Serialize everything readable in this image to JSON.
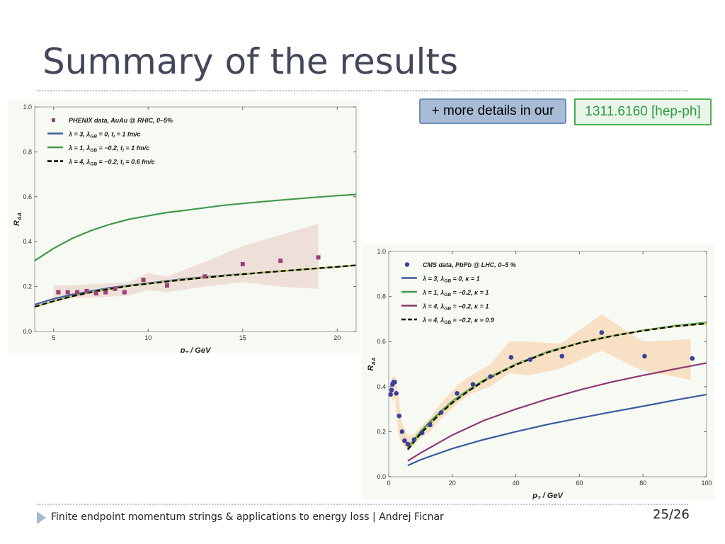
{
  "slide": {
    "title": "Summary of the results",
    "details_label": "+ more details in our",
    "arxiv_label": "1311.6160 [hep-ph]",
    "footer": "Finite endpoint momentum strings & applications to energy loss  |  Andrej Ficnar",
    "page": "25/26"
  },
  "chart_data": [
    {
      "type": "scatter",
      "xlabel": "p_T / GeV",
      "ylabel": "R_AA",
      "xlim": [
        4,
        21
      ],
      "ylim": [
        0,
        1.0
      ],
      "xticks": [
        5,
        10,
        15,
        20
      ],
      "yticks": [
        0.0,
        0.2,
        0.4,
        0.6,
        0.8,
        1.0
      ],
      "legend_position": "top-left",
      "points": {
        "name": "PHENIX data, AuAu @ RHIC, 0–5%",
        "color": "#9a3f78",
        "x": [
          5.25,
          5.75,
          6.25,
          6.75,
          7.25,
          7.75,
          8.25,
          8.75,
          9.75,
          11.0,
          13.0,
          15.0,
          17.0,
          19.0
        ],
        "y": [
          0.175,
          0.175,
          0.175,
          0.18,
          0.17,
          0.175,
          0.19,
          0.175,
          0.23,
          0.205,
          0.245,
          0.3,
          0.315,
          0.33
        ]
      },
      "band": {
        "color": "#ecdcd3",
        "x": [
          5,
          6,
          7,
          8,
          9,
          10,
          11,
          13,
          15,
          17,
          19
        ],
        "upper": [
          0.205,
          0.205,
          0.21,
          0.215,
          0.22,
          0.26,
          0.245,
          0.31,
          0.38,
          0.43,
          0.48
        ],
        "lower": [
          0.15,
          0.15,
          0.15,
          0.155,
          0.16,
          0.185,
          0.175,
          0.2,
          0.22,
          0.2,
          0.19
        ]
      },
      "series": [
        {
          "name": "λ = 3, λ_GB = 0, t_i = 1 fm/c",
          "color": "#3a5ba0",
          "style": "solid",
          "x": [
            4,
            5,
            6,
            7,
            8,
            9,
            10,
            12,
            14,
            16,
            18,
            20,
            21
          ],
          "y": [
            0.12,
            0.145,
            0.165,
            0.18,
            0.195,
            0.205,
            0.215,
            0.235,
            0.25,
            0.262,
            0.275,
            0.288,
            0.295
          ]
        },
        {
          "name": "λ = 1, λ_GB = −0.2, t_i = 1 fm/c",
          "color": "#3f9a4f",
          "style": "solid",
          "x": [
            4,
            5,
            6,
            7,
            8,
            9,
            10,
            11,
            12,
            14,
            16,
            18,
            20,
            21
          ],
          "y": [
            0.315,
            0.37,
            0.415,
            0.45,
            0.478,
            0.5,
            0.515,
            0.53,
            0.54,
            0.562,
            0.578,
            0.592,
            0.605,
            0.61
          ]
        },
        {
          "name": "λ = 4, λ_GB = −0.2, t_i = 0.6 fm/c",
          "color": "#000000",
          "style": "dashed",
          "x": [
            4,
            5,
            6,
            7,
            8,
            9,
            10,
            12,
            14,
            16,
            18,
            20,
            21
          ],
          "y": [
            0.11,
            0.135,
            0.157,
            0.175,
            0.19,
            0.203,
            0.213,
            0.232,
            0.248,
            0.262,
            0.275,
            0.288,
            0.295
          ]
        }
      ]
    },
    {
      "type": "scatter",
      "xlabel": "p_T / GeV",
      "ylabel": "R_AA",
      "xlim": [
        0,
        100
      ],
      "ylim": [
        0,
        1.0
      ],
      "xticks": [
        0,
        20,
        40,
        60,
        80,
        100
      ],
      "yticks": [
        0.0,
        0.2,
        0.4,
        0.6,
        0.8,
        1.0
      ],
      "legend_position": "top-left",
      "points": {
        "name": "CMS data, PbPb @ LHC, 0–5 %",
        "color": "#3b3f9c",
        "x": [
          0.6,
          0.9,
          1.2,
          1.5,
          1.9,
          2.4,
          3.3,
          4.2,
          5.0,
          6.0,
          8.0,
          10.5,
          13.0,
          16.5,
          21.5,
          26.5,
          32.0,
          38.5,
          44.5,
          54.5,
          67.0,
          80.5,
          95.5
        ],
        "y": [
          0.365,
          0.385,
          0.41,
          0.42,
          0.42,
          0.37,
          0.27,
          0.2,
          0.16,
          0.145,
          0.165,
          0.195,
          0.23,
          0.285,
          0.37,
          0.41,
          0.445,
          0.53,
          0.52,
          0.535,
          0.64,
          0.535,
          0.525
        ]
      },
      "band": {
        "color": "#f7dcba",
        "x": [
          1,
          2,
          3,
          4,
          6,
          8,
          10,
          13,
          16,
          22,
          26,
          32,
          38,
          44,
          54,
          67,
          80,
          95
        ],
        "upper": [
          0.44,
          0.45,
          0.36,
          0.25,
          0.18,
          0.19,
          0.22,
          0.26,
          0.32,
          0.41,
          0.45,
          0.5,
          0.6,
          0.6,
          0.59,
          0.72,
          0.6,
          0.61
        ],
        "lower": [
          0.33,
          0.35,
          0.19,
          0.15,
          0.12,
          0.14,
          0.17,
          0.2,
          0.25,
          0.33,
          0.37,
          0.4,
          0.46,
          0.45,
          0.48,
          0.56,
          0.47,
          0.43
        ]
      },
      "series": [
        {
          "name": "λ = 3, λ_GB = 0, κ = 1",
          "color": "#3a5ba0",
          "style": "solid",
          "x": [
            6,
            10,
            15,
            20,
            30,
            40,
            50,
            60,
            70,
            80,
            90,
            100
          ],
          "y": [
            0.05,
            0.075,
            0.1,
            0.125,
            0.165,
            0.2,
            0.232,
            0.26,
            0.287,
            0.313,
            0.34,
            0.365
          ]
        },
        {
          "name": "λ = 1, λ_GB = −0.2, κ = 1",
          "color": "#3f9a4f",
          "style": "solid",
          "x": [
            6,
            8,
            10,
            13,
            16,
            20,
            25,
            30,
            35,
            40,
            50,
            60,
            70,
            80,
            90,
            100
          ],
          "y": [
            0.13,
            0.165,
            0.2,
            0.245,
            0.285,
            0.335,
            0.385,
            0.43,
            0.465,
            0.5,
            0.555,
            0.595,
            0.625,
            0.65,
            0.67,
            0.685
          ]
        },
        {
          "name": "λ = 4, λ_GB = −0.2, κ = 1",
          "color": "#8e3a73",
          "style": "solid",
          "x": [
            6,
            10,
            15,
            20,
            30,
            40,
            50,
            60,
            70,
            80,
            90,
            100
          ],
          "y": [
            0.07,
            0.105,
            0.145,
            0.185,
            0.25,
            0.3,
            0.345,
            0.385,
            0.42,
            0.45,
            0.478,
            0.505
          ]
        },
        {
          "name": "λ = 4, λ_GB = −0.2, κ = 0.9",
          "color": "#000000",
          "style": "dashed",
          "x": [
            6,
            8,
            10,
            13,
            16,
            20,
            25,
            30,
            35,
            40,
            50,
            60,
            70,
            80,
            90,
            100
          ],
          "y": [
            0.12,
            0.155,
            0.19,
            0.235,
            0.277,
            0.328,
            0.38,
            0.425,
            0.462,
            0.497,
            0.552,
            0.593,
            0.624,
            0.648,
            0.668,
            0.68
          ]
        }
      ]
    }
  ]
}
